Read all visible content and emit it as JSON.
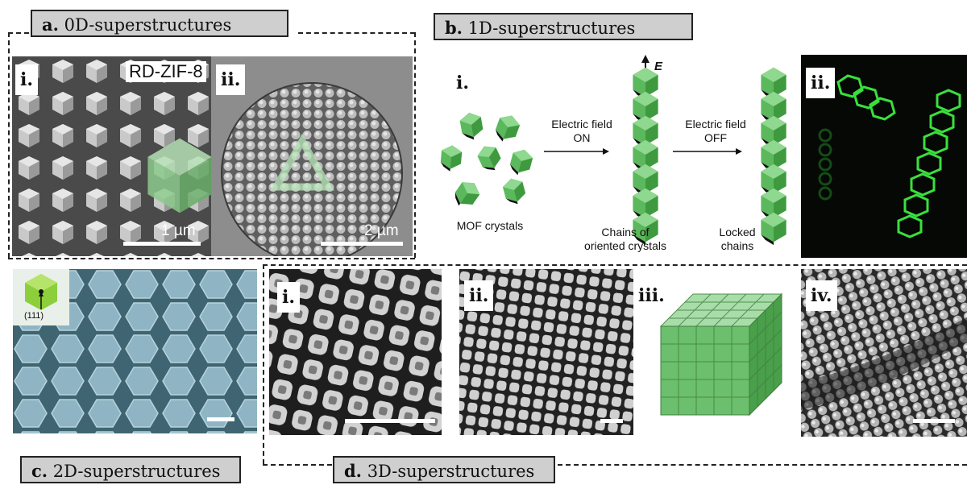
{
  "sections": {
    "a": {
      "letter": "a.",
      "title": "0D-superstructures"
    },
    "b": {
      "letter": "b.",
      "title": "1D-superstructures"
    },
    "c": {
      "letter": "c.",
      "title": "2D-superstructures"
    },
    "d": {
      "letter": "d.",
      "title": "3D-superstructures"
    }
  },
  "panel_a": {
    "tag_i": "i.",
    "tag_ii": "ii.",
    "rdzif": "RD-ZIF-8",
    "scale_i": "1 µm",
    "scale_ii": "2 µm"
  },
  "panel_b": {
    "tag_i": "i.",
    "tag_ii": "ii.",
    "field_arrow": "E",
    "mof": "MOF crystals",
    "field_on_1": "Electric field",
    "field_on_2": "ON",
    "field_off_1": "Electric field",
    "field_off_2": "OFF",
    "chains_1": "Chains of",
    "chains_2": "oriented crystals",
    "locked_1": "Locked",
    "locked_2": "chains"
  },
  "panel_c": {
    "facet": "(111)"
  },
  "panel_d": {
    "tag_i": "i.",
    "tag_ii": "ii.",
    "tag_iii": "iii.",
    "tag_iv": "iv."
  },
  "colors": {
    "crystal_green": "#5cb85c",
    "crystal_dark": "#2e7d32",
    "fluor_green": "#39e03c",
    "sem_blue": "#8fb5c4"
  }
}
